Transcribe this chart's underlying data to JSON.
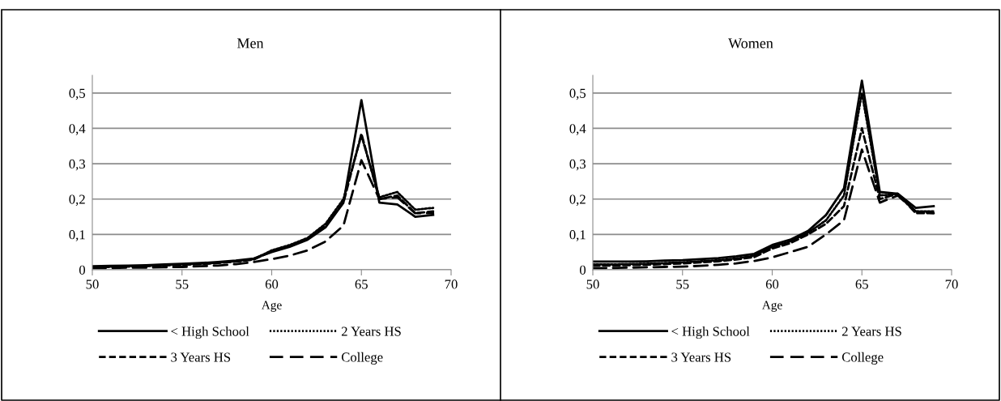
{
  "chart_data": [
    {
      "type": "line",
      "title": "Men",
      "xlabel": "Age",
      "x": [
        50,
        51,
        52,
        53,
        54,
        55,
        56,
        57,
        58,
        59,
        60,
        61,
        62,
        63,
        64,
        65,
        66,
        67,
        68,
        69
      ],
      "xlim": [
        50,
        70
      ],
      "xticks": [
        50,
        55,
        60,
        65,
        70
      ],
      "ylim": [
        0,
        0.55
      ],
      "yticks": [
        0,
        {
          "value": 0.1,
          "label": "0,1"
        },
        {
          "value": 0.2,
          "label": "0,2"
        },
        {
          "value": 0.3,
          "label": "0,3"
        },
        {
          "value": 0.4,
          "label": "0,4"
        },
        {
          "value": 0.5,
          "label": "0,5"
        }
      ],
      "grid": "y",
      "legend": "bottom",
      "series": [
        {
          "name": "< High School",
          "color": "#000000",
          "line_style": "solid",
          "values": [
            0.01,
            0.011,
            0.012,
            0.013,
            0.015,
            0.017,
            0.019,
            0.022,
            0.026,
            0.032,
            0.05,
            0.065,
            0.085,
            0.12,
            0.19,
            0.48,
            0.19,
            0.185,
            0.15,
            0.155
          ]
        },
        {
          "name": "2 Years HS",
          "color": "#000000",
          "line_style": "dotted",
          "values": [
            0.008,
            0.009,
            0.01,
            0.011,
            0.013,
            0.015,
            0.017,
            0.02,
            0.024,
            0.03,
            0.055,
            0.07,
            0.09,
            0.13,
            0.2,
            0.38,
            0.205,
            0.22,
            0.17,
            0.175
          ]
        },
        {
          "name": "3 Years HS",
          "color": "#000000",
          "line_style": "dashed",
          "values": [
            0.007,
            0.008,
            0.009,
            0.01,
            0.012,
            0.014,
            0.016,
            0.019,
            0.023,
            0.029,
            0.052,
            0.067,
            0.088,
            0.125,
            0.19,
            0.385,
            0.2,
            0.21,
            0.16,
            0.165
          ]
        },
        {
          "name": "College",
          "color": "#000000",
          "line_style": "long dashed",
          "values": [
            0.005,
            0.005,
            0.006,
            0.006,
            0.007,
            0.008,
            0.01,
            0.012,
            0.016,
            0.022,
            0.03,
            0.04,
            0.055,
            0.08,
            0.125,
            0.31,
            0.2,
            0.205,
            0.16,
            0.16
          ]
        }
      ]
    },
    {
      "type": "line",
      "title": "Women",
      "xlabel": "Age",
      "x": [
        50,
        51,
        52,
        53,
        54,
        55,
        56,
        57,
        58,
        59,
        60,
        61,
        62,
        63,
        64,
        65,
        66,
        67,
        68,
        69
      ],
      "xlim": [
        50,
        70
      ],
      "xticks": [
        50,
        55,
        60,
        65,
        70
      ],
      "ylim": [
        0,
        0.55
      ],
      "yticks": [
        0,
        {
          "value": 0.1,
          "label": "0,1"
        },
        {
          "value": 0.2,
          "label": "0,2"
        },
        {
          "value": 0.3,
          "label": "0,3"
        },
        {
          "value": 0.4,
          "label": "0,4"
        },
        {
          "value": 0.5,
          "label": "0,5"
        }
      ],
      "grid": "y",
      "legend": "bottom",
      "series": [
        {
          "name": "< High School",
          "color": "#000000",
          "line_style": "solid",
          "values": [
            0.023,
            0.023,
            0.023,
            0.024,
            0.026,
            0.027,
            0.03,
            0.033,
            0.038,
            0.045,
            0.07,
            0.085,
            0.11,
            0.155,
            0.23,
            0.535,
            0.22,
            0.215,
            0.175,
            0.18
          ]
        },
        {
          "name": "2 Years HS",
          "color": "#000000",
          "line_style": "dotted",
          "values": [
            0.015,
            0.015,
            0.016,
            0.017,
            0.019,
            0.021,
            0.024,
            0.027,
            0.032,
            0.04,
            0.065,
            0.08,
            0.105,
            0.14,
            0.21,
            0.5,
            0.21,
            0.215,
            0.165,
            0.165
          ]
        },
        {
          "name": "3 Years HS",
          "color": "#000000",
          "line_style": "dashed",
          "values": [
            0.012,
            0.012,
            0.013,
            0.014,
            0.016,
            0.018,
            0.021,
            0.024,
            0.029,
            0.036,
            0.06,
            0.075,
            0.1,
            0.13,
            0.18,
            0.4,
            0.2,
            0.215,
            0.16,
            0.16
          ]
        },
        {
          "name": "College",
          "color": "#000000",
          "line_style": "long dashed",
          "values": [
            0.005,
            0.005,
            0.006,
            0.007,
            0.008,
            0.009,
            0.011,
            0.014,
            0.018,
            0.025,
            0.035,
            0.05,
            0.065,
            0.1,
            0.14,
            0.34,
            0.19,
            0.21,
            0.165,
            0.16
          ]
        }
      ]
    }
  ]
}
